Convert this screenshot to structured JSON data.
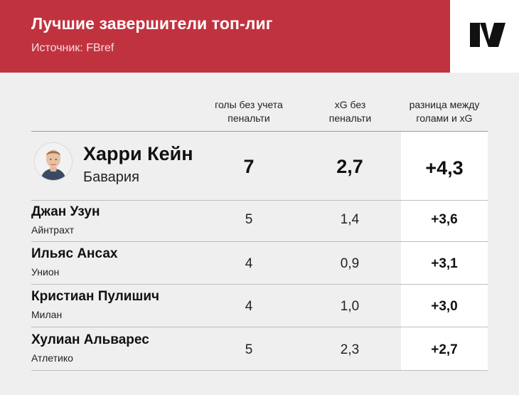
{
  "header": {
    "title": "Лучшие завершители топ-лиг",
    "source": "Источник: FBref"
  },
  "columns": {
    "goals": [
      "голы без учета",
      "пенальти"
    ],
    "xg": [
      "xG без",
      "пенальти"
    ],
    "diff": [
      "разница между",
      "голами и xG"
    ]
  },
  "players": [
    {
      "name": "Харри Кейн",
      "club": "Бавария",
      "goals": "7",
      "xg": "2,7",
      "diff": "+4,3"
    },
    {
      "name": "Джан Узун",
      "club": "Айнтрахт",
      "goals": "5",
      "xg": "1,4",
      "diff": "+3,6"
    },
    {
      "name": "Ильяс Ансах",
      "club": "Унион",
      "goals": "4",
      "xg": "0,9",
      "diff": "+3,1"
    },
    {
      "name": "Кристиан Пулишич",
      "club": "Милан",
      "goals": "4",
      "xg": "1,0",
      "diff": "+3,0"
    },
    {
      "name": "Хулиан Альварес",
      "club": "Атлетико",
      "goals": "5",
      "xg": "2,3",
      "diff": "+2,7"
    }
  ],
  "icons": {
    "logo": "brand-logo-icon",
    "avatar": "player-photo-icon"
  },
  "colors": {
    "header_bg": "#c1323f",
    "page_bg": "#efefef",
    "highlight_bg": "#ffffff"
  }
}
